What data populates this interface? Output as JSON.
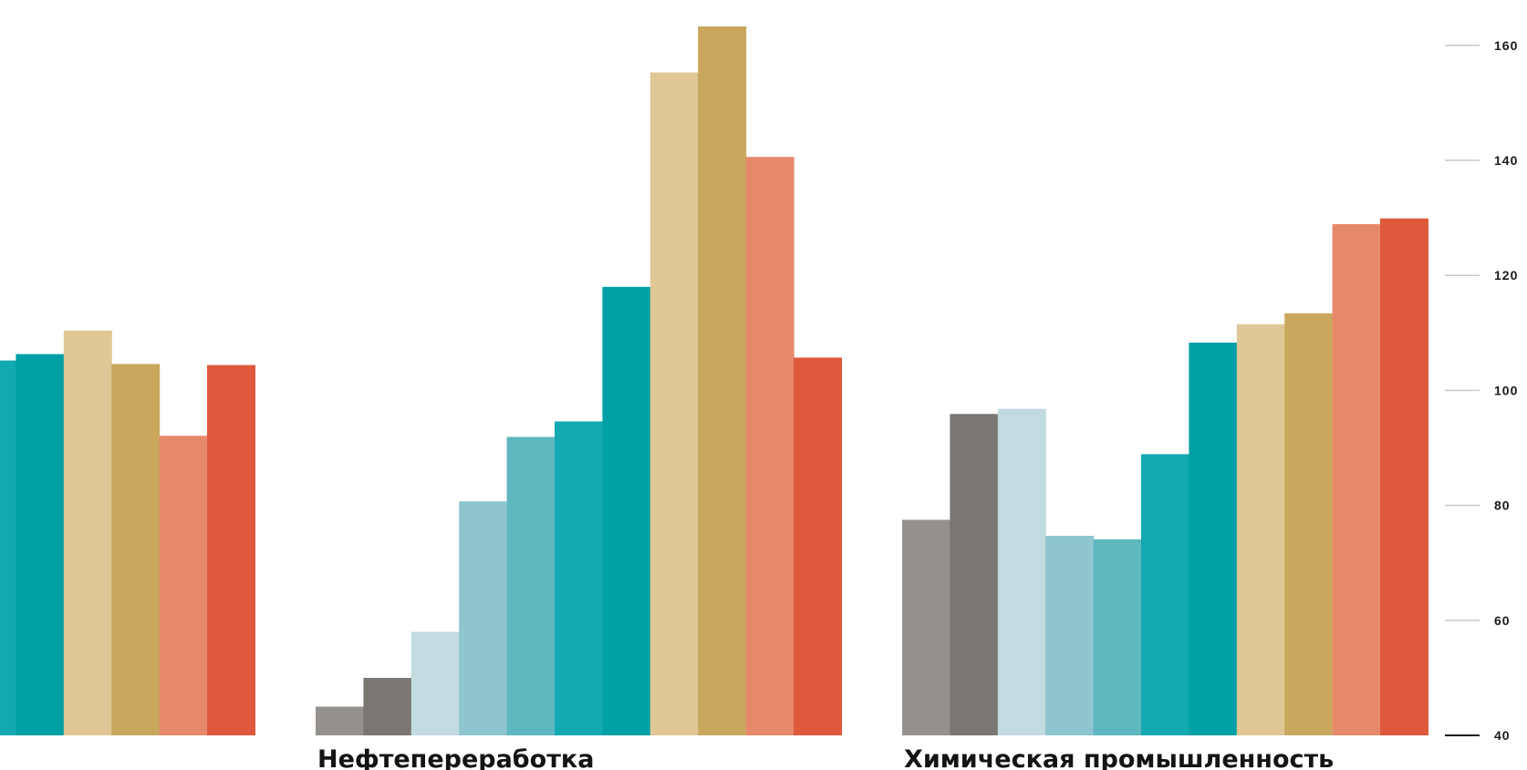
{
  "chart_data": {
    "type": "bar",
    "title": "",
    "xlabel": "",
    "ylabel": "",
    "ylim": [
      40,
      163
    ],
    "yticks": [
      40,
      60,
      80,
      100,
      120,
      140,
      160
    ],
    "y_axis_position": "right",
    "grid": false,
    "groups": [
      {
        "label": "",
        "partially_visible": true,
        "values": [
          105.2,
          106.3,
          110.4,
          104.6,
          92.1,
          104.4
        ],
        "colors": [
          "#13a9b1",
          "#00a0a6",
          "#dfc796",
          "#c9a85e",
          "#e6896b",
          "#df593d"
        ]
      },
      {
        "label": "Нефтепереработка",
        "values": [
          45,
          50,
          58,
          80.7,
          91.9,
          94.6,
          118.0,
          155.3,
          163.3,
          140.6,
          105.7
        ],
        "colors": [
          "#95918e",
          "#7a7671",
          "#c1dbdf",
          "#8fc5ce",
          "#5fb7c0",
          "#13a9b1",
          "#00a0a6",
          "#dfc796",
          "#c9a85e",
          "#e6896b",
          "#df593d"
        ]
      },
      {
        "label": "Химическая промышленность",
        "values": [
          77.5,
          95.9,
          96.8,
          74.7,
          74.1,
          88.9,
          108.3,
          111.5,
          113.4,
          128.9,
          129.9
        ],
        "colors": [
          "#95918e",
          "#7a7671",
          "#c1dbdf",
          "#8fc5ce",
          "#5fb7c0",
          "#13a9b1",
          "#00a0a6",
          "#dfc796",
          "#c9a85e",
          "#e6896b",
          "#df593d"
        ]
      }
    ]
  }
}
